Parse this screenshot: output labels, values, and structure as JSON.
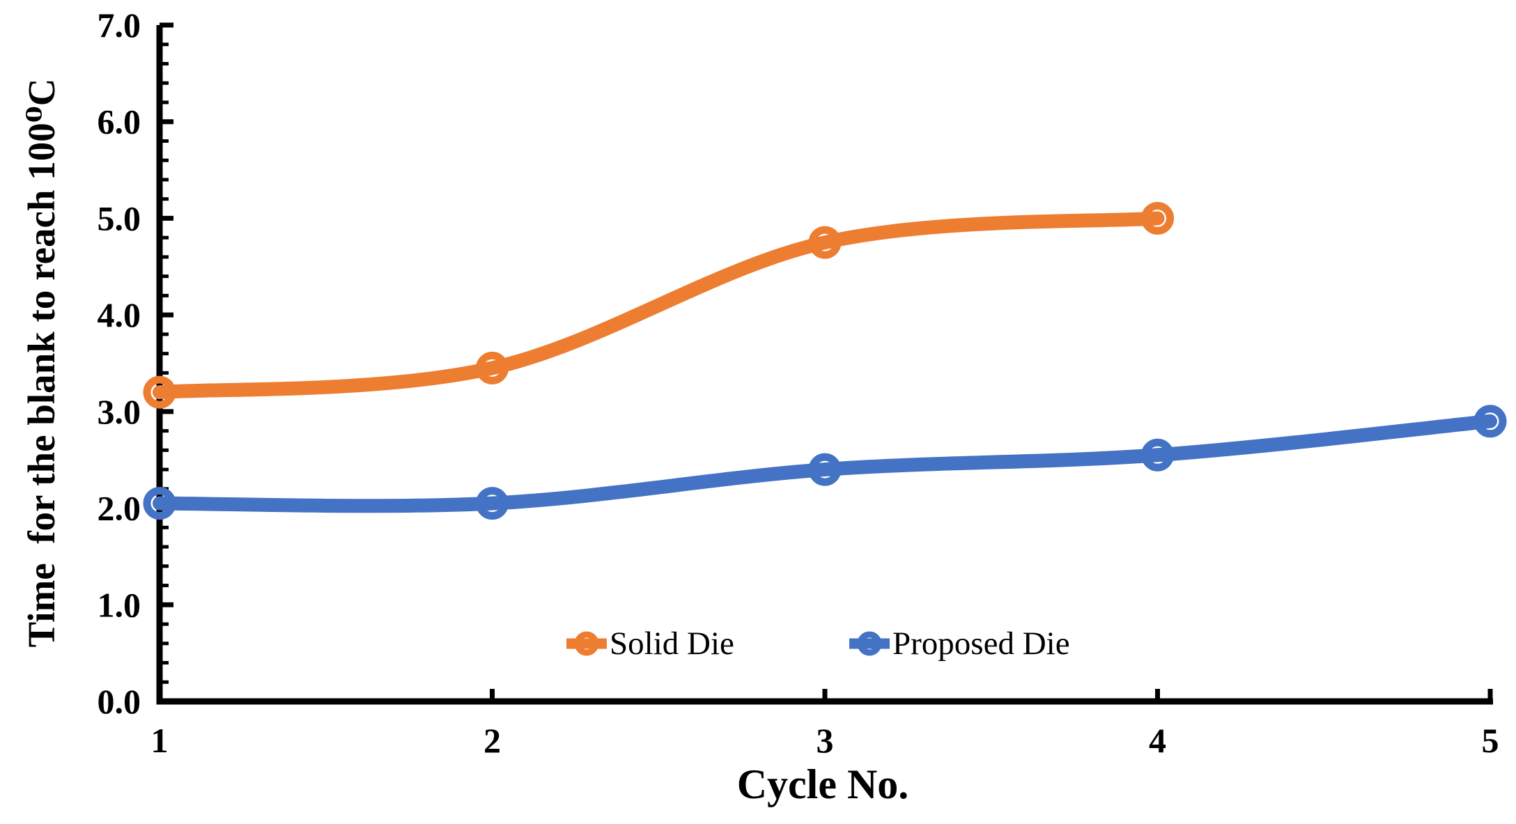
{
  "chart_data": {
    "type": "line",
    "title": "",
    "xlabel": "Cycle No.",
    "ylabel": "Time  for the blank to reach 100⁰C",
    "x": [
      1,
      2,
      3,
      4,
      5
    ],
    "x_tick_labels": [
      "1",
      "2",
      "3",
      "4",
      "5"
    ],
    "y_tick_labels": [
      "0.0",
      "1.0",
      "2.0",
      "3.0",
      "4.0",
      "5.0",
      "6.0",
      "7.0"
    ],
    "ylim": [
      0.0,
      7.0
    ],
    "y_major_step": 1.0,
    "y_minor_step": 0.2,
    "grid": "off",
    "legend_position": "inside-bottom-center",
    "axis_color": "#000000",
    "background_color": "#ffffff",
    "series": [
      {
        "name": "Solid Die",
        "color": "#ED7D31",
        "marker": "open-circle",
        "values": [
          3.2,
          3.45,
          4.75,
          5.0,
          null
        ]
      },
      {
        "name": "Proposed Die",
        "color": "#4472C4",
        "marker": "open-circle",
        "values": [
          2.05,
          2.05,
          2.4,
          2.55,
          2.9
        ]
      }
    ]
  }
}
